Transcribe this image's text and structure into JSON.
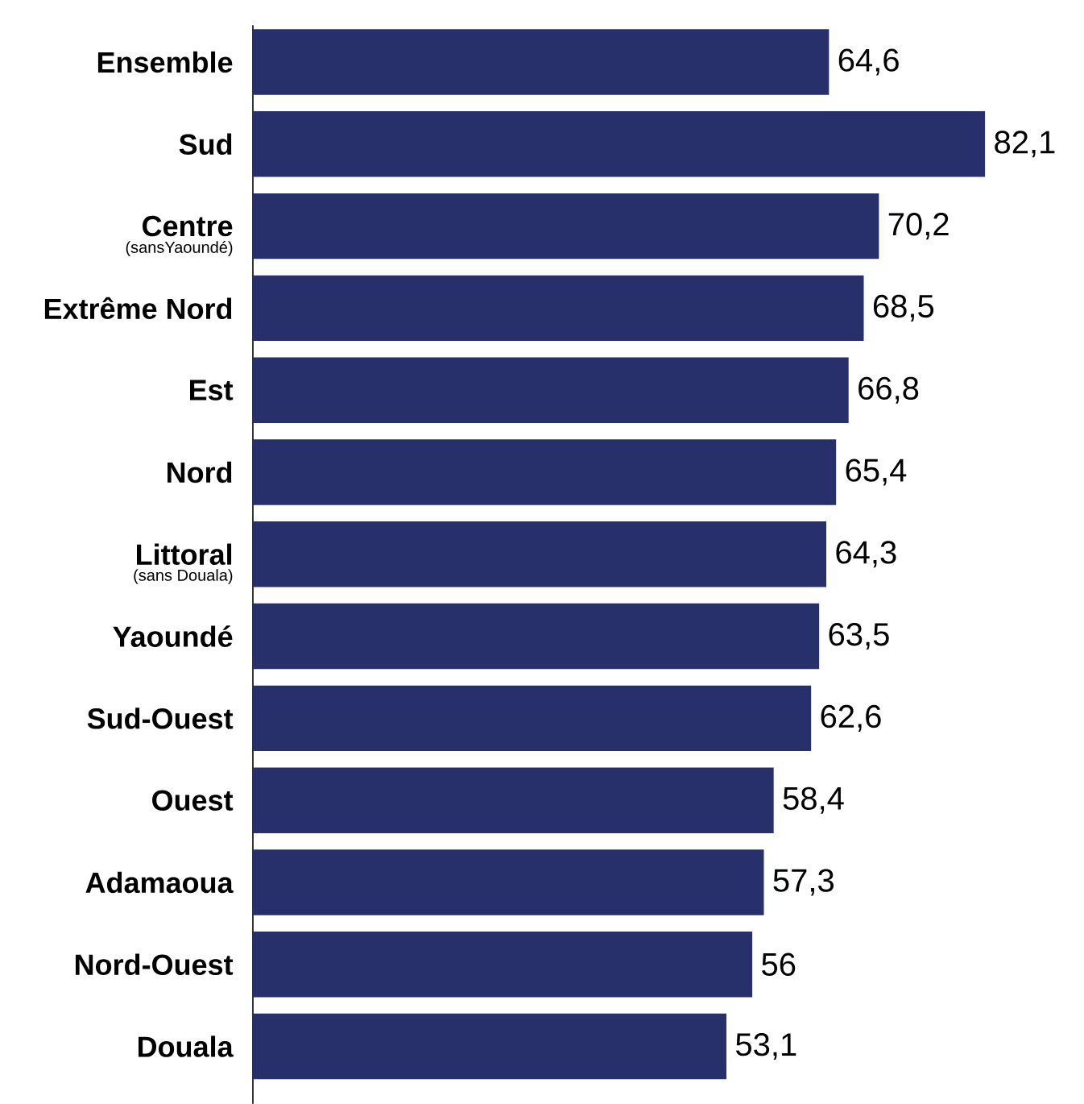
{
  "chart_data": {
    "type": "bar",
    "orientation": "horizontal",
    "categories": [
      "Ensemble",
      "Sud",
      "Centre",
      "Extrême Nord",
      "Est",
      "Nord",
      "Littoral",
      "Yaoundé",
      "Sud-Ouest",
      "Ouest",
      "Adamaoua",
      "Nord-Ouest",
      "Douala"
    ],
    "values": [
      64.6,
      82.1,
      70.2,
      68.5,
      66.8,
      65.4,
      64.3,
      63.5,
      62.6,
      58.4,
      57.3,
      56,
      53.1
    ],
    "value_labels": [
      "64,6",
      "82,1",
      "70,2",
      "68,5",
      "66,8",
      "65,4",
      "64,3",
      "63,5",
      "62,6",
      "58,4",
      "57,3",
      "56",
      "53,1"
    ],
    "color": "#27306b",
    "annotations": [
      "(sansYaoundé)",
      "(sans Douala)"
    ]
  }
}
